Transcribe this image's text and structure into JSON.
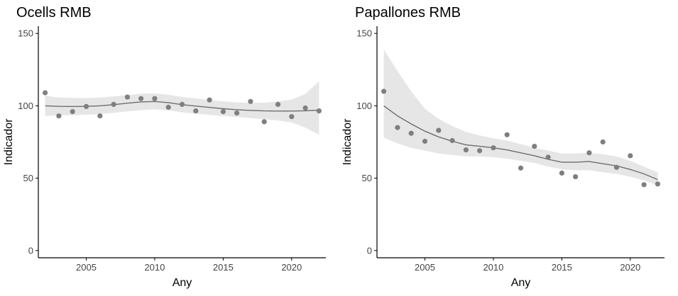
{
  "chart_data": [
    {
      "type": "scatter",
      "title": "Ocells RMB",
      "xlabel": "Any",
      "ylabel": "Indicador",
      "xlim": [
        2001.5,
        2022.5
      ],
      "ylim": [
        -5,
        155
      ],
      "xticks": [
        2005,
        2010,
        2015,
        2020
      ],
      "yticks": [
        0,
        50,
        100,
        150
      ],
      "grid": false,
      "points": {
        "x": [
          2002,
          2003,
          2004,
          2005,
          2006,
          2007,
          2008,
          2009,
          2010,
          2011,
          2012,
          2013,
          2014,
          2015,
          2016,
          2017,
          2018,
          2019,
          2020,
          2021,
          2022
        ],
        "y": [
          109,
          93,
          96,
          99.5,
          93,
          101,
          106,
          105,
          105,
          99,
          101,
          96.5,
          104,
          96,
          95,
          103,
          89,
          101,
          92.5,
          98.5,
          96.5
        ]
      },
      "trend": {
        "x": [
          2002,
          2003,
          2004,
          2005,
          2006,
          2007,
          2008,
          2009,
          2010,
          2011,
          2012,
          2013,
          2014,
          2015,
          2016,
          2017,
          2018,
          2019,
          2020,
          2021,
          2022
        ],
        "y": [
          100,
          99.6,
          99.5,
          99.6,
          100,
          100.8,
          101.8,
          102.7,
          103,
          102.2,
          100.8,
          99.8,
          98.9,
          98,
          97.3,
          96.8,
          96.5,
          96.4,
          96.4,
          96.6,
          97
        ],
        "lower": [
          93,
          93.5,
          93.5,
          93.8,
          94.3,
          95.2,
          96.2,
          97,
          97.5,
          96.8,
          95.5,
          94.5,
          93.8,
          93,
          92.2,
          91.5,
          90.8,
          89.8,
          88.5,
          85,
          80
        ],
        "upper": [
          107,
          105.7,
          105.5,
          105.4,
          105.7,
          106.4,
          107.4,
          108.4,
          108.5,
          107.6,
          106.1,
          105.1,
          104,
          103,
          102.4,
          102.1,
          102.2,
          103,
          104.3,
          108.2,
          117
        ]
      }
    },
    {
      "type": "scatter",
      "title": "Papallones RMB",
      "xlabel": "Any",
      "ylabel": "Indicador",
      "xlim": [
        2001.5,
        2022.5
      ],
      "ylim": [
        -5,
        155
      ],
      "xticks": [
        2005,
        2010,
        2015,
        2020
      ],
      "yticks": [
        0,
        50,
        100,
        150
      ],
      "grid": false,
      "points": {
        "x": [
          2002,
          2003,
          2004,
          2005,
          2006,
          2007,
          2008,
          2009,
          2010,
          2011,
          2012,
          2013,
          2014,
          2015,
          2016,
          2017,
          2018,
          2019,
          2020,
          2021,
          2022
        ],
        "y": [
          110,
          85,
          81,
          75.5,
          83,
          76,
          69.5,
          69,
          71,
          80,
          57,
          72,
          64.5,
          53.5,
          51,
          67.5,
          75,
          57.5,
          65.5,
          45.5,
          46
        ]
      },
      "trend": {
        "x": [
          2002,
          2003,
          2004,
          2005,
          2006,
          2007,
          2008,
          2009,
          2010,
          2011,
          2012,
          2013,
          2014,
          2015,
          2016,
          2017,
          2018,
          2019,
          2020,
          2021,
          2022
        ],
        "y": [
          100,
          93,
          87.5,
          82.5,
          78.5,
          75.5,
          73,
          72,
          71,
          69.5,
          67.5,
          65.5,
          63,
          61,
          61,
          61.5,
          60,
          58.5,
          56,
          53,
          49
        ],
        "lower": [
          78,
          74,
          71,
          69,
          67,
          66,
          65,
          65,
          64.5,
          63.5,
          62,
          60.5,
          58,
          56,
          55.5,
          55.5,
          54,
          53,
          51,
          48.5,
          45
        ],
        "upper": [
          139,
          124,
          110,
          98,
          91,
          86,
          82,
          79.5,
          77.5,
          76,
          73.5,
          71,
          69,
          67,
          67,
          67.5,
          66.5,
          65,
          62,
          58,
          54
        ]
      }
    }
  ]
}
